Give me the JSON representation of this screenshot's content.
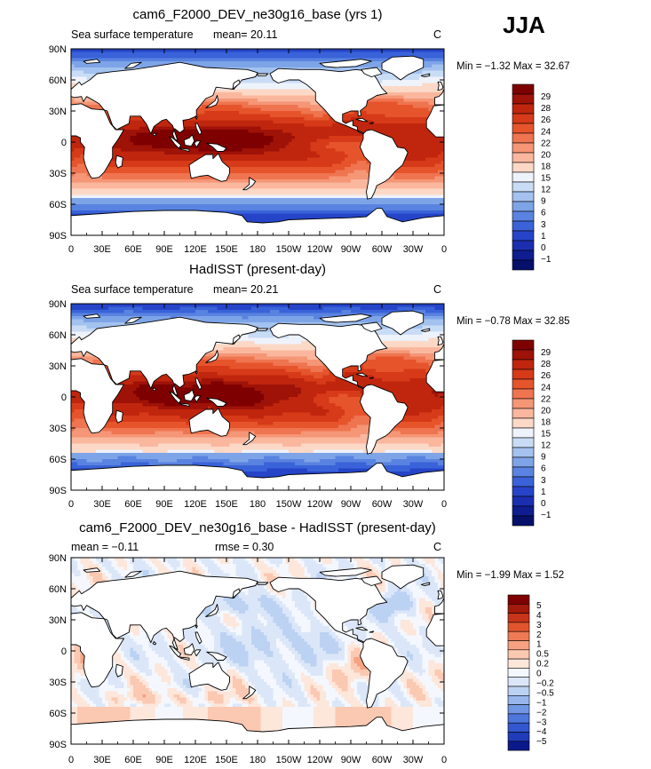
{
  "season": "JJA",
  "chart_data": [
    {
      "type": "heatmap",
      "title": "cam6_F2000_DEV_ne30g16_base (yrs 1)",
      "subtitle_left": "Sea surface temperature",
      "stat_text": "mean=   20.11",
      "units": "C",
      "minmax": "Min =  −1.32  Max =   32.67",
      "xticks": [
        "0",
        "30E",
        "60E",
        "90E",
        "120E",
        "150E",
        "180",
        "150W",
        "120W",
        "90W",
        "60W",
        "30W",
        "0"
      ],
      "yticks": [
        "90N",
        "60N",
        "30N",
        "0",
        "30S",
        "60S",
        "90S"
      ],
      "xlim": [
        0,
        360
      ],
      "ylim": [
        -90,
        90
      ],
      "levels": [
        "29",
        "28",
        "26",
        "24",
        "22",
        "20",
        "18",
        "15",
        "12",
        "9",
        "6",
        "3",
        "1",
        "0",
        "−1"
      ],
      "colors": [
        "#7f0000",
        "#9e1208",
        "#c0260e",
        "#d63a18",
        "#e6542c",
        "#ef7450",
        "#f59676",
        "#fab79e",
        "#fcd8c6",
        "#eef2fb",
        "#c9dcf5",
        "#a3c2ef",
        "#7ea4e8",
        "#5983e0",
        "#3a63d9",
        "#2544c8",
        "#1a2fb0",
        "#0f1d90",
        "#06106b"
      ],
      "field": "sst_model"
    },
    {
      "type": "heatmap",
      "title": "HadISST (present-day)",
      "subtitle_left": "Sea surface temperature",
      "stat_text": "mean=   20.21",
      "units": "C",
      "minmax": "Min =  −0.78  Max =   32.85",
      "xticks": [
        "0",
        "30E",
        "60E",
        "90E",
        "120E",
        "150E",
        "180",
        "150W",
        "120W",
        "90W",
        "60W",
        "30W",
        "0"
      ],
      "yticks": [
        "90N",
        "60N",
        "30N",
        "0",
        "30S",
        "60S",
        "90S"
      ],
      "xlim": [
        0,
        360
      ],
      "ylim": [
        -90,
        90
      ],
      "levels": [
        "29",
        "28",
        "26",
        "24",
        "22",
        "20",
        "18",
        "15",
        "12",
        "9",
        "6",
        "3",
        "1",
        "0",
        "−1"
      ],
      "colors": [
        "#7f0000",
        "#9e1208",
        "#c0260e",
        "#d63a18",
        "#e6542c",
        "#ef7450",
        "#f59676",
        "#fab79e",
        "#fcd8c6",
        "#eef2fb",
        "#c9dcf5",
        "#a3c2ef",
        "#7ea4e8",
        "#5983e0",
        "#3a63d9",
        "#2544c8",
        "#1a2fb0",
        "#0f1d90",
        "#06106b"
      ],
      "field": "sst_obs"
    },
    {
      "type": "heatmap",
      "title": "cam6_F2000_DEV_ne30g16_base - HadISST (present-day)",
      "subtitle_left": "mean =   −0.11",
      "stat_text": "rmse =    0.30",
      "units": "C",
      "minmax": "Min =  −1.99  Max =    1.52",
      "xticks": [
        "0",
        "30E",
        "60E",
        "90E",
        "120E",
        "150E",
        "180",
        "150W",
        "120W",
        "90W",
        "60W",
        "30W",
        "0"
      ],
      "yticks": [
        "90N",
        "60N",
        "30N",
        "0",
        "30S",
        "60S",
        "90S"
      ],
      "xlim": [
        0,
        360
      ],
      "ylim": [
        -90,
        90
      ],
      "levels": [
        "5",
        "4",
        "3",
        "2",
        "1",
        "0.5",
        "0.2",
        "0",
        "−0.2",
        "−0.5",
        "−1",
        "−2",
        "−3",
        "−4",
        "−5"
      ],
      "colors": [
        "#7f0000",
        "#a41a0c",
        "#c8341a",
        "#e0552e",
        "#ee7a55",
        "#f6a282",
        "#fbc8b2",
        "#fde6da",
        "#f4f7fd",
        "#dbe7f8",
        "#bcd2f3",
        "#97b6ec",
        "#7197e4",
        "#4f76dc",
        "#3257cf",
        "#203cb8",
        "#0b1a8a"
      ],
      "field": "sst_diff"
    }
  ]
}
